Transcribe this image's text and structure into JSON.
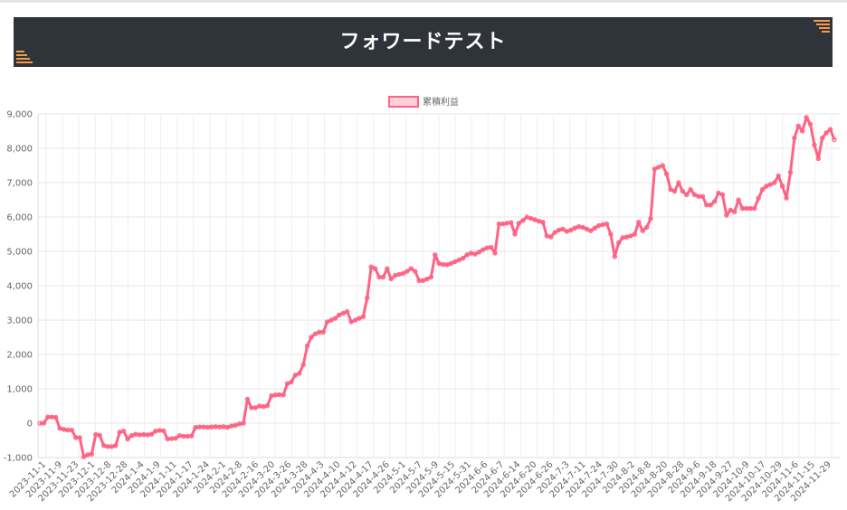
{
  "header": {
    "title": "フォワードテスト"
  },
  "colors": {
    "line": "#ff6384",
    "fill": "rgba(255,99,132,0.25)",
    "header_bg": "#2f333a",
    "accent": "#f39a46"
  },
  "chart_data": {
    "type": "line",
    "title": "",
    "xlabel": "",
    "ylabel": "",
    "ylim": [
      -1000,
      9000
    ],
    "yticks": [
      9000,
      8000,
      7000,
      6000,
      5000,
      4000,
      3000,
      2000,
      1000,
      0,
      -1000
    ],
    "ytick_labels": [
      "9,000",
      "8,000",
      "7,000",
      "6,000",
      "5,000",
      "4,000",
      "3,000",
      "2,000",
      "1,000",
      "0",
      "-1,000"
    ],
    "legend": {
      "position": "top-center",
      "labels": [
        "累積利益"
      ]
    },
    "grid": true,
    "x_tick_labels": [
      "2023-11-1",
      "2023-11-9",
      "2023-11-23",
      "2023-12-1",
      "2023-12-8",
      "2023-12-28",
      "2024-1-4",
      "2024-1-9",
      "2024-1-11",
      "2024-1-17",
      "2024-1-24",
      "2024-2-1",
      "2024-2-8",
      "2024-2-16",
      "2024-3-20",
      "2024-3-26",
      "2024-3-28",
      "2024-4-3",
      "2024-4-10",
      "2024-4-12",
      "2024-4-17",
      "2024-4-26",
      "2024-5-1",
      "2024-5-7",
      "2024-5-9",
      "2024-5-15",
      "2024-5-31",
      "2024-6-6",
      "2024-6-7",
      "2024-6-14",
      "2024-6-20",
      "2024-6-26",
      "2024-7-3",
      "2024-7-11",
      "2024-7-24",
      "2024-7-30",
      "2024-8-2",
      "2024-8-8",
      "2024-8-20",
      "2024-8-28",
      "2024-9-6",
      "2024-9-18",
      "2024-9-27",
      "2024-10-9",
      "2024-10-17",
      "2024-10-29",
      "2024-11-6",
      "2024-11-15",
      "2024-11-29"
    ],
    "series": [
      {
        "name": "累積利益",
        "values": [
          0,
          0,
          180,
          180,
          170,
          -150,
          -180,
          -200,
          -200,
          -420,
          -420,
          -980,
          -920,
          -900,
          -330,
          -350,
          -650,
          -680,
          -680,
          -650,
          -260,
          -230,
          -460,
          -360,
          -320,
          -340,
          -330,
          -340,
          -320,
          -230,
          -210,
          -220,
          -460,
          -450,
          -440,
          -360,
          -380,
          -380,
          -370,
          -120,
          -110,
          -110,
          -120,
          -110,
          -100,
          -110,
          -100,
          -120,
          -80,
          -60,
          -20,
          0,
          700,
          450,
          450,
          500,
          480,
          510,
          800,
          820,
          830,
          820,
          1150,
          1200,
          1400,
          1450,
          1700,
          2250,
          2500,
          2600,
          2650,
          2650,
          2950,
          3000,
          3050,
          3150,
          3200,
          3250,
          2950,
          3000,
          3050,
          3100,
          3650,
          4550,
          4500,
          4250,
          4250,
          4500,
          4200,
          4300,
          4330,
          4360,
          4420,
          4500,
          4420,
          4150,
          4150,
          4200,
          4250,
          4900,
          4650,
          4620,
          4610,
          4650,
          4700,
          4750,
          4800,
          4900,
          4950,
          4920,
          4980,
          5050,
          5100,
          5120,
          4950,
          5800,
          5800,
          5820,
          5840,
          5500,
          5820,
          5900,
          6000,
          5960,
          5920,
          5880,
          5850,
          5450,
          5420,
          5550,
          5620,
          5650,
          5580,
          5620,
          5680,
          5720,
          5700,
          5650,
          5600,
          5680,
          5750,
          5780,
          5800,
          5500,
          4850,
          5250,
          5400,
          5420,
          5450,
          5500,
          5850,
          5600,
          5700,
          5950,
          7400,
          7450,
          7500,
          7250,
          6800,
          6750,
          7000,
          6750,
          6650,
          6800,
          6650,
          6600,
          6600,
          6350,
          6350,
          6450,
          6700,
          6650,
          6050,
          6200,
          6150,
          6500,
          6250,
          6250,
          6250,
          6250,
          6550,
          6800,
          6900,
          6950,
          7000,
          7200,
          6900,
          6550,
          7300,
          8300,
          8650,
          8500,
          8900,
          8700,
          8100,
          7700,
          8300,
          8450,
          8550,
          8250
        ]
      }
    ]
  }
}
